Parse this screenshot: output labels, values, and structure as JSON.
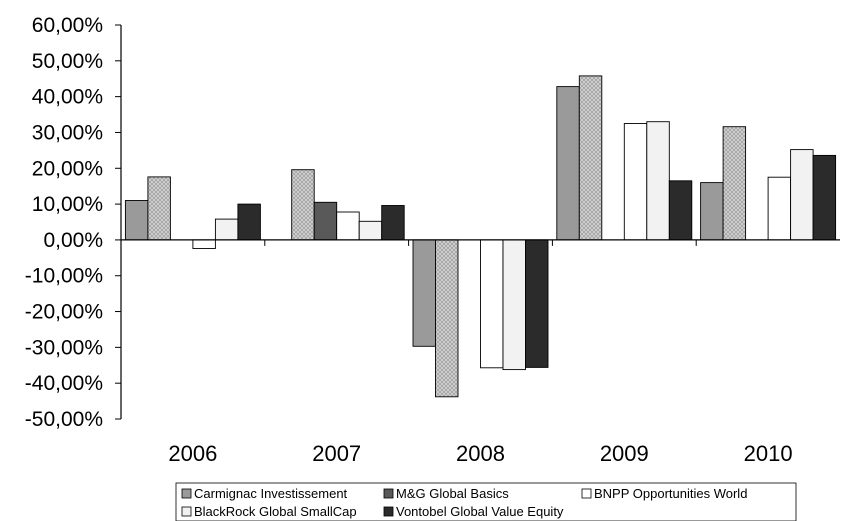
{
  "chart_data": {
    "type": "bar",
    "categories": [
      "2006",
      "2007",
      "2008",
      "2009",
      "2010"
    ],
    "series": [
      {
        "name": "Carmignac Investissement",
        "values": [
          11.0,
          null,
          -29.7,
          42.8,
          16.0
        ],
        "color": "#8c8c8c",
        "pattern": "solid-gray"
      },
      {
        "name": "M&G Global Basics",
        "values": [
          17.6,
          19.6,
          -43.8,
          45.8,
          31.6
        ],
        "color": "#bdbdbd",
        "pattern": "crosshatch"
      },
      {
        "name": "BNPP Opportunities World",
        "values": [
          null,
          10.5,
          null,
          null,
          null
        ],
        "color": "#595959",
        "pattern": "solid-dark"
      },
      {
        "name": "BlackRock Global SmallCap",
        "values": [
          -2.4,
          7.8,
          -35.7,
          32.5,
          17.5
        ],
        "color": "#ffffff",
        "pattern": "white"
      },
      {
        "name": "Vontobel Global Value Equity",
        "values": [
          5.8,
          5.2,
          -36.2,
          33.0,
          25.2
        ],
        "color": "#f0f0f0",
        "pattern": "light"
      },
      {
        "name": "",
        "values": [
          10.0,
          9.6,
          -35.6,
          16.5,
          23.6
        ],
        "color": "#2b2b2b",
        "pattern": "solid-black"
      }
    ],
    "legend": [
      {
        "label": "Carmignac Investissement",
        "swatch": "#9a9a9a"
      },
      {
        "label": "M&G Global Basics",
        "swatch": "#595959"
      },
      {
        "label": "BNPP Opportunities World",
        "swatch": "#ffffff"
      },
      {
        "label": "BlackRock Global SmallCap",
        "swatch": "#f0f0f0"
      },
      {
        "label": "Vontobel Global Value Equity",
        "swatch": "#2b2b2b"
      }
    ],
    "y_ticks": [
      "60,00%",
      "50,00%",
      "40,00%",
      "30,00%",
      "20,00%",
      "10,00%",
      "0,00%",
      "-10,00%",
      "-20,00%",
      "-30,00%",
      "-40,00%",
      "-50,00%"
    ],
    "ylim": [
      -50,
      60
    ],
    "title": "",
    "xlabel": "",
    "ylabel": "",
    "grid": false,
    "legend_position": "bottom"
  }
}
